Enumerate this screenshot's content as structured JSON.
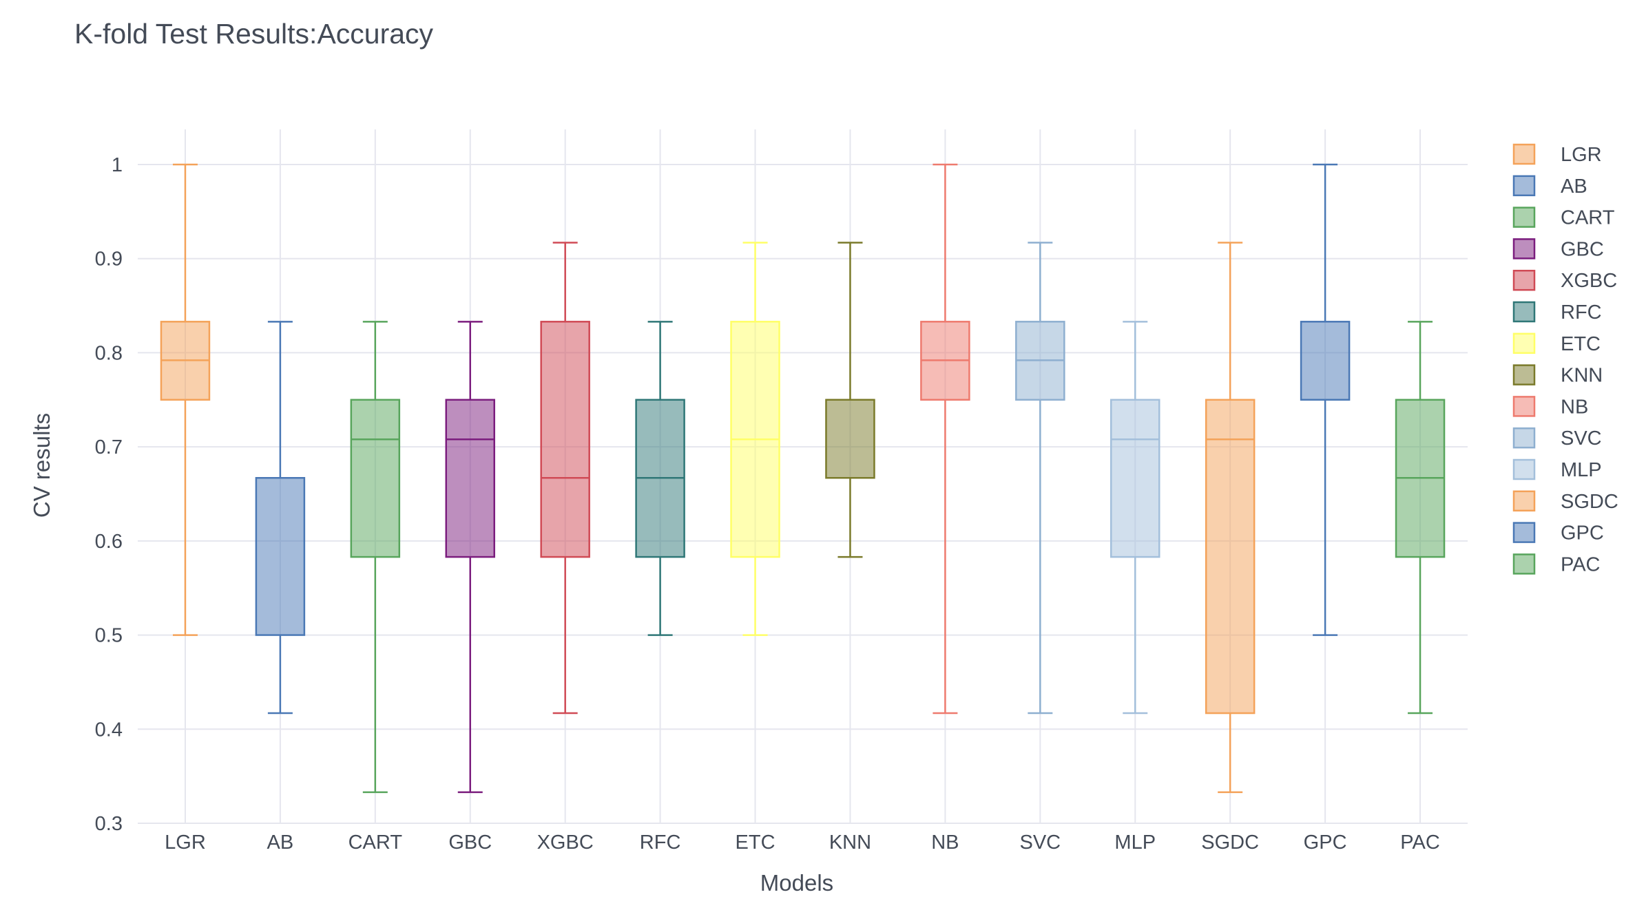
{
  "chart_data": {
    "type": "box",
    "title": "K-fold Test Results:Accuracy",
    "xlabel": "Models",
    "ylabel": "CV results",
    "ylim": [
      0.3,
      1.0
    ],
    "yticks": [
      0.3,
      0.4,
      0.5,
      0.6,
      0.7,
      0.8,
      0.9,
      1
    ],
    "ytick_labels": [
      "0.3",
      "0.4",
      "0.5",
      "0.6",
      "0.7",
      "0.8",
      "0.9",
      "1"
    ],
    "grid": true,
    "legend_position": "right",
    "series": [
      {
        "name": "LGR",
        "color": "#f4a259",
        "min": 0.5,
        "q1": 0.75,
        "median": 0.792,
        "q3": 0.833,
        "max": 1.0
      },
      {
        "name": "AB",
        "color": "#4a78b5",
        "min": 0.417,
        "q1": 0.5,
        "median": 0.667,
        "q3": 0.667,
        "max": 0.833
      },
      {
        "name": "CART",
        "color": "#58a55c",
        "min": 0.333,
        "q1": 0.583,
        "median": 0.708,
        "q3": 0.75,
        "max": 0.833
      },
      {
        "name": "GBC",
        "color": "#7b1d7e",
        "min": 0.333,
        "q1": 0.583,
        "median": 0.708,
        "q3": 0.75,
        "max": 0.833
      },
      {
        "name": "XGBC",
        "color": "#d04a55",
        "min": 0.417,
        "q1": 0.583,
        "median": 0.667,
        "q3": 0.833,
        "max": 0.917
      },
      {
        "name": "RFC",
        "color": "#2f7777",
        "min": 0.5,
        "q1": 0.583,
        "median": 0.667,
        "q3": 0.75,
        "max": 0.833
      },
      {
        "name": "ETC",
        "color": "#ffff66",
        "min": 0.5,
        "q1": 0.583,
        "median": 0.708,
        "q3": 0.833,
        "max": 0.917
      },
      {
        "name": "KNN",
        "color": "#7a7a2a",
        "min": 0.583,
        "q1": 0.667,
        "median": 0.75,
        "q3": 0.75,
        "max": 0.917
      },
      {
        "name": "NB",
        "color": "#ee7a6e",
        "min": 0.417,
        "q1": 0.75,
        "median": 0.792,
        "q3": 0.833,
        "max": 1.0
      },
      {
        "name": "SVC",
        "color": "#8eafd0",
        "min": 0.417,
        "q1": 0.75,
        "median": 0.792,
        "q3": 0.833,
        "max": 0.917
      },
      {
        "name": "MLP",
        "color": "#a3bfdb",
        "min": 0.417,
        "q1": 0.583,
        "median": 0.708,
        "q3": 0.75,
        "max": 0.833
      },
      {
        "name": "SGDC",
        "color": "#f4a259",
        "min": 0.333,
        "q1": 0.417,
        "median": 0.708,
        "q3": 0.75,
        "max": 0.917
      },
      {
        "name": "GPC",
        "color": "#4a78b5",
        "min": 0.5,
        "q1": 0.75,
        "median": 0.75,
        "q3": 0.833,
        "max": 1.0
      },
      {
        "name": "PAC",
        "color": "#58a55c",
        "min": 0.417,
        "q1": 0.583,
        "median": 0.667,
        "q3": 0.75,
        "max": 0.833
      }
    ]
  }
}
